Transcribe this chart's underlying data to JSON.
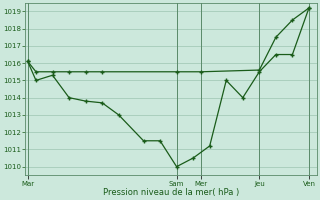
{
  "background_color": "#cce8dc",
  "grid_color": "#aacfbe",
  "line_color": "#1a5c1a",
  "xlabel": "Pression niveau de la mer( hPa )",
  "ylim": [
    1009.5,
    1019.5
  ],
  "yticks": [
    1010,
    1011,
    1012,
    1013,
    1014,
    1015,
    1016,
    1017,
    1018,
    1019
  ],
  "xlim": [
    -2,
    210
  ],
  "day_labels": [
    "Mar",
    "Sam",
    "Mer",
    "Jeu",
    "Ven"
  ],
  "day_positions": [
    0,
    108,
    126,
    168,
    204
  ],
  "series1_x": [
    0,
    6,
    18,
    30,
    42,
    54,
    66,
    84,
    96,
    108,
    120,
    132,
    144,
    156,
    168,
    180,
    192,
    204
  ],
  "series1_y": [
    1016.1,
    1015.0,
    1015.3,
    1014.0,
    1013.8,
    1013.7,
    1013.0,
    1011.5,
    1011.5,
    1010.0,
    1010.5,
    1011.2,
    1015.0,
    1014.0,
    1015.5,
    1016.5,
    1016.5,
    1019.2
  ],
  "series2_x": [
    0,
    6,
    18,
    30,
    42,
    54,
    108,
    126,
    168,
    180,
    192,
    204
  ],
  "series2_y": [
    1016.1,
    1015.5,
    1015.5,
    1015.5,
    1015.5,
    1015.5,
    1015.5,
    1015.5,
    1015.6,
    1017.5,
    1018.5,
    1019.2
  ],
  "vline_color": "#5a8a6a",
  "vline_positions": [
    0,
    108,
    126,
    168,
    204
  ]
}
